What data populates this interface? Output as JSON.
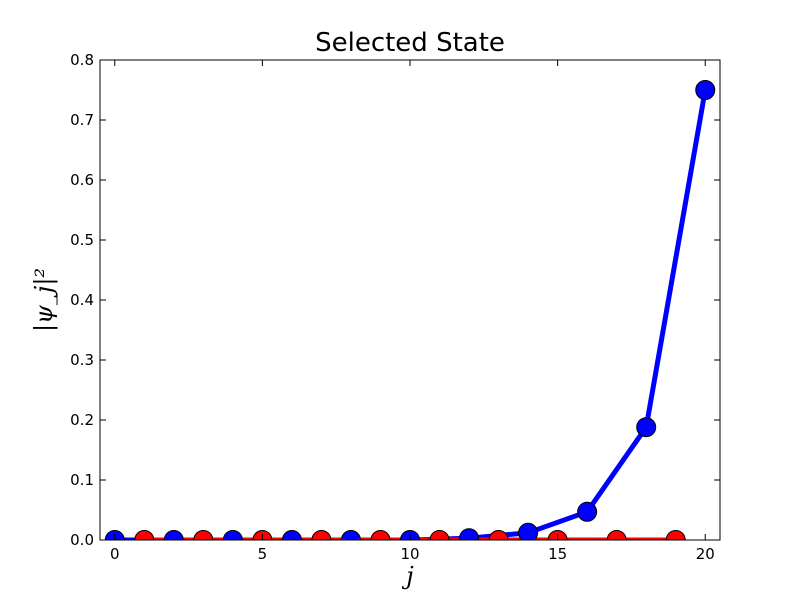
{
  "chart_data": {
    "type": "line",
    "title": "Selected State",
    "xlabel": "j",
    "ylabel": "|ψ_j|²",
    "xlim": [
      -0.5,
      20.5
    ],
    "ylim": [
      0.0,
      0.8
    ],
    "x_ticks": [
      0,
      5,
      10,
      15,
      20
    ],
    "y_ticks": [
      0.0,
      0.1,
      0.2,
      0.3,
      0.4,
      0.5,
      0.6,
      0.7,
      0.8
    ],
    "grid": false,
    "series": [
      {
        "color": "#0000ff",
        "x": [
          0,
          2,
          4,
          6,
          8,
          10,
          12,
          14,
          16,
          18,
          20
        ],
        "y": [
          0.0,
          0.0,
          0.0,
          0.0,
          0.0,
          0.0,
          0.003,
          0.012,
          0.047,
          0.188,
          0.75
        ]
      },
      {
        "color": "#ff0000",
        "x": [
          1,
          3,
          5,
          7,
          9,
          11,
          13,
          15,
          17,
          19
        ],
        "y": [
          0.0,
          0.0,
          0.0,
          0.0,
          0.0,
          0.0,
          0.0,
          0.0,
          0.0,
          0.0
        ]
      }
    ]
  }
}
